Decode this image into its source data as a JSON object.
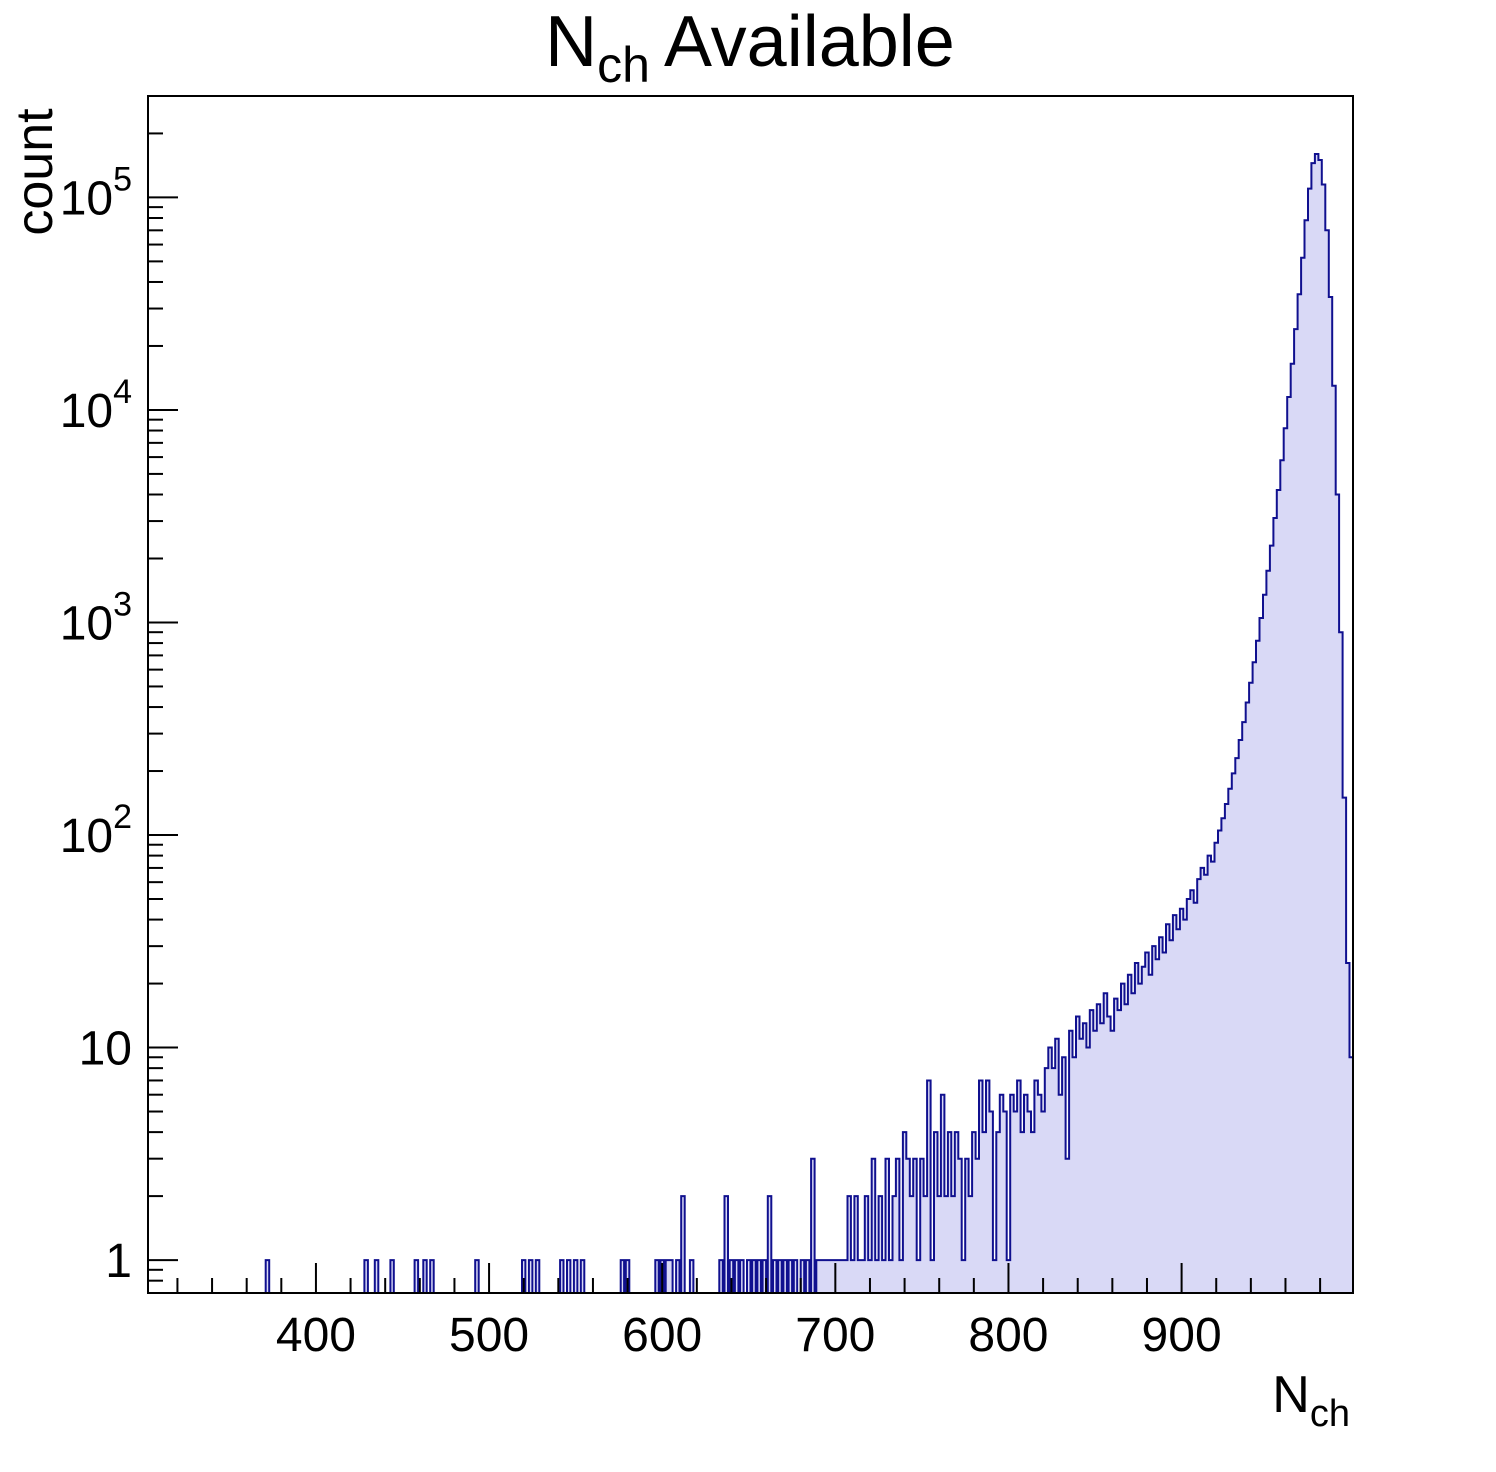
{
  "title": {
    "prefix": "N",
    "sub": "ch",
    "rest": "Available"
  },
  "y_axis": {
    "label": "count",
    "ticks": [
      {
        "v": 1,
        "m": "1",
        "e": ""
      },
      {
        "v": 10,
        "m": "10",
        "e": ""
      },
      {
        "v": 100,
        "m": "10",
        "e": "2"
      },
      {
        "v": 1000,
        "m": "10",
        "e": "3"
      },
      {
        "v": 10000,
        "m": "10",
        "e": "4"
      },
      {
        "v": 100000,
        "m": "10",
        "e": "5"
      }
    ]
  },
  "x_axis": {
    "label_main": "N",
    "label_sub": "ch",
    "ticks": [
      400,
      500,
      600,
      700,
      800,
      900
    ],
    "minor_step": 20
  },
  "colors": {
    "hist_fill": "#d9d9f6",
    "hist_line": "#10108f",
    "axis": "#000000",
    "background": "#ffffff"
  },
  "chart_data": {
    "type": "bar",
    "histogram": true,
    "log_y": true,
    "grid": false,
    "title": "N_{ch} Available",
    "xlabel": "N_{ch}",
    "ylabel": "count",
    "xlim": [
      303,
      999
    ],
    "ylim": [
      0.7,
      300000
    ],
    "bin_width": 2,
    "bins": [
      [
        371,
        1
      ],
      [
        428,
        1
      ],
      [
        434,
        1
      ],
      [
        443,
        1
      ],
      [
        457,
        1
      ],
      [
        462,
        1
      ],
      [
        466,
        1
      ],
      [
        492,
        1
      ],
      [
        519,
        1
      ],
      [
        523,
        1
      ],
      [
        527,
        1
      ],
      [
        541,
        1
      ],
      [
        545,
        1
      ],
      [
        549,
        1
      ],
      [
        553,
        1
      ],
      [
        576,
        1
      ],
      [
        579,
        1
      ],
      [
        596,
        1
      ],
      [
        599,
        1
      ],
      [
        602,
        1
      ],
      [
        604,
        1
      ],
      [
        608,
        1
      ],
      [
        611,
        2
      ],
      [
        616,
        1
      ],
      [
        633,
        1
      ],
      [
        636,
        2
      ],
      [
        639,
        1
      ],
      [
        642,
        1
      ],
      [
        645,
        1
      ],
      [
        649,
        1
      ],
      [
        652,
        1
      ],
      [
        655,
        1
      ],
      [
        658,
        1
      ],
      [
        661,
        2
      ],
      [
        664,
        1
      ],
      [
        667,
        1
      ],
      [
        670,
        1
      ],
      [
        673,
        1
      ],
      [
        676,
        1
      ],
      [
        680,
        1
      ],
      [
        683,
        1
      ],
      [
        686,
        3
      ],
      [
        689,
        1
      ],
      [
        691,
        1
      ],
      [
        693,
        1
      ],
      [
        695,
        1
      ],
      [
        697,
        1
      ],
      [
        699,
        1
      ],
      [
        701,
        1
      ],
      [
        703,
        1
      ],
      [
        705,
        1
      ],
      [
        707,
        2
      ],
      [
        709,
        1
      ],
      [
        711,
        2
      ],
      [
        713,
        1
      ],
      [
        715,
        1
      ],
      [
        717,
        2
      ],
      [
        719,
        1
      ],
      [
        721,
        3
      ],
      [
        723,
        1
      ],
      [
        725,
        2
      ],
      [
        727,
        1
      ],
      [
        729,
        3
      ],
      [
        731,
        1
      ],
      [
        733,
        2
      ],
      [
        735,
        3
      ],
      [
        737,
        1
      ],
      [
        739,
        4
      ],
      [
        741,
        3
      ],
      [
        743,
        2
      ],
      [
        745,
        3
      ],
      [
        747,
        1
      ],
      [
        749,
        3
      ],
      [
        751,
        2
      ],
      [
        753,
        7
      ],
      [
        755,
        1
      ],
      [
        757,
        4
      ],
      [
        759,
        2
      ],
      [
        761,
        6
      ],
      [
        763,
        2
      ],
      [
        765,
        4
      ],
      [
        767,
        2
      ],
      [
        769,
        4
      ],
      [
        771,
        3
      ],
      [
        773,
        1
      ],
      [
        775,
        3
      ],
      [
        777,
        2
      ],
      [
        779,
        4
      ],
      [
        781,
        3
      ],
      [
        783,
        7
      ],
      [
        785,
        4
      ],
      [
        787,
        7
      ],
      [
        789,
        5
      ],
      [
        791,
        1
      ],
      [
        793,
        4
      ],
      [
        795,
        6
      ],
      [
        797,
        5
      ],
      [
        799,
        1
      ],
      [
        801,
        6
      ],
      [
        803,
        5
      ],
      [
        805,
        7
      ],
      [
        807,
        4
      ],
      [
        809,
        6
      ],
      [
        811,
        5
      ],
      [
        813,
        4
      ],
      [
        815,
        7
      ],
      [
        817,
        6
      ],
      [
        819,
        5
      ],
      [
        821,
        8
      ],
      [
        823,
        10
      ],
      [
        825,
        8
      ],
      [
        827,
        11
      ],
      [
        829,
        6
      ],
      [
        831,
        9
      ],
      [
        833,
        3
      ],
      [
        835,
        12
      ],
      [
        837,
        9
      ],
      [
        839,
        14
      ],
      [
        841,
        11
      ],
      [
        843,
        13
      ],
      [
        845,
        10
      ],
      [
        847,
        15
      ],
      [
        849,
        12
      ],
      [
        851,
        16
      ],
      [
        853,
        13
      ],
      [
        855,
        18
      ],
      [
        857,
        14
      ],
      [
        859,
        12
      ],
      [
        861,
        17
      ],
      [
        863,
        15
      ],
      [
        865,
        20
      ],
      [
        867,
        16
      ],
      [
        869,
        22
      ],
      [
        871,
        18
      ],
      [
        873,
        25
      ],
      [
        875,
        20
      ],
      [
        877,
        24
      ],
      [
        879,
        28
      ],
      [
        881,
        22
      ],
      [
        883,
        30
      ],
      [
        885,
        26
      ],
      [
        887,
        33
      ],
      [
        889,
        28
      ],
      [
        891,
        38
      ],
      [
        893,
        32
      ],
      [
        895,
        42
      ],
      [
        897,
        36
      ],
      [
        899,
        45
      ],
      [
        901,
        40
      ],
      [
        903,
        50
      ],
      [
        905,
        55
      ],
      [
        907,
        48
      ],
      [
        909,
        62
      ],
      [
        911,
        70
      ],
      [
        913,
        65
      ],
      [
        915,
        80
      ],
      [
        917,
        75
      ],
      [
        919,
        92
      ],
      [
        921,
        105
      ],
      [
        923,
        120
      ],
      [
        925,
        140
      ],
      [
        927,
        165
      ],
      [
        929,
        195
      ],
      [
        931,
        230
      ],
      [
        933,
        280
      ],
      [
        935,
        340
      ],
      [
        937,
        420
      ],
      [
        939,
        520
      ],
      [
        941,
        650
      ],
      [
        943,
        820
      ],
      [
        945,
        1050
      ],
      [
        947,
        1350
      ],
      [
        949,
        1750
      ],
      [
        951,
        2300
      ],
      [
        953,
        3100
      ],
      [
        955,
        4200
      ],
      [
        957,
        5800
      ],
      [
        959,
        8200
      ],
      [
        961,
        11500
      ],
      [
        963,
        16500
      ],
      [
        965,
        24000
      ],
      [
        967,
        35000
      ],
      [
        969,
        52000
      ],
      [
        971,
        78000
      ],
      [
        973,
        110000
      ],
      [
        975,
        145000
      ],
      [
        977,
        160000
      ],
      [
        979,
        150000
      ],
      [
        981,
        115000
      ],
      [
        983,
        70000
      ],
      [
        985,
        34000
      ],
      [
        987,
        13000
      ],
      [
        989,
        4000
      ],
      [
        991,
        900
      ],
      [
        993,
        150
      ],
      [
        995,
        25
      ],
      [
        997,
        9
      ]
    ]
  }
}
